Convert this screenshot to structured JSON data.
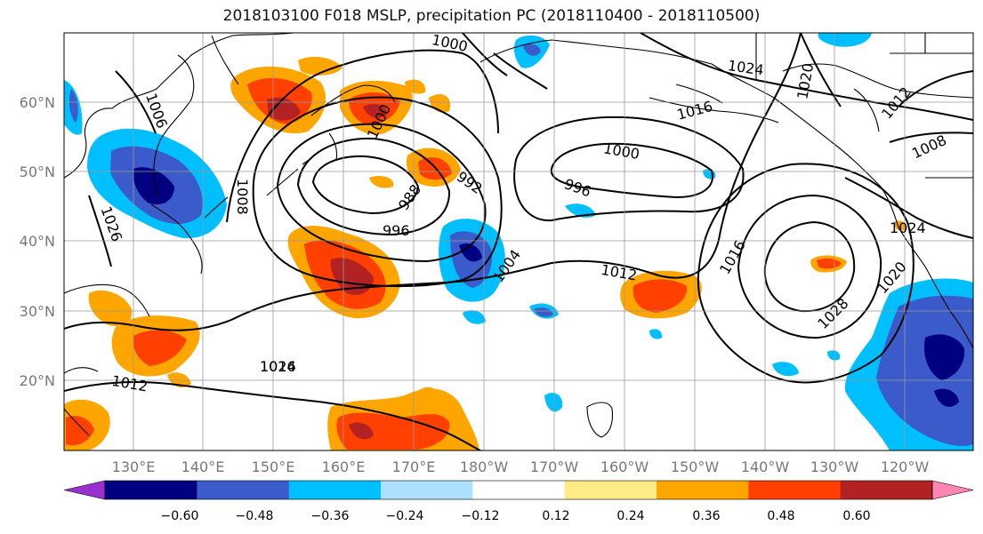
{
  "title": "2018103100 F018 MSLP, precipitation PC (2018110400 - 2018110500)",
  "lat_labels": [
    "60°N",
    "50°N",
    "40°N",
    "30°N",
    "20°N"
  ],
  "lon_labels": [
    "130°E",
    "140°E",
    "150°E",
    "160°E",
    "170°E",
    "180°W",
    "170°W",
    "160°W",
    "150°W",
    "140°W",
    "130°W",
    "120°W"
  ],
  "contour_labels": [
    "1000",
    "1006",
    "1008",
    "1000",
    "988",
    "992",
    "996",
    "1004",
    "1012",
    "1012",
    "1016",
    "996",
    "1000",
    "1016",
    "1024",
    "1020",
    "1012",
    "1008",
    "1024",
    "1020",
    "1028",
    "1016",
    "1026",
    "1024"
  ],
  "colorbar": {
    "colors": [
      "#9932CC",
      "#000080",
      "#3A5BC9",
      "#00BFFF",
      "#ADDFFF",
      "#FFFFFF",
      "#FFEB86",
      "#FFA500",
      "#FF4000",
      "#B22222",
      "#FF85B3"
    ],
    "tick_labels": [
      "−0.60",
      "−0.48",
      "−0.36",
      "−0.24",
      "−0.12",
      "0.12",
      "0.24",
      "0.36",
      "0.48",
      "0.60"
    ]
  }
}
